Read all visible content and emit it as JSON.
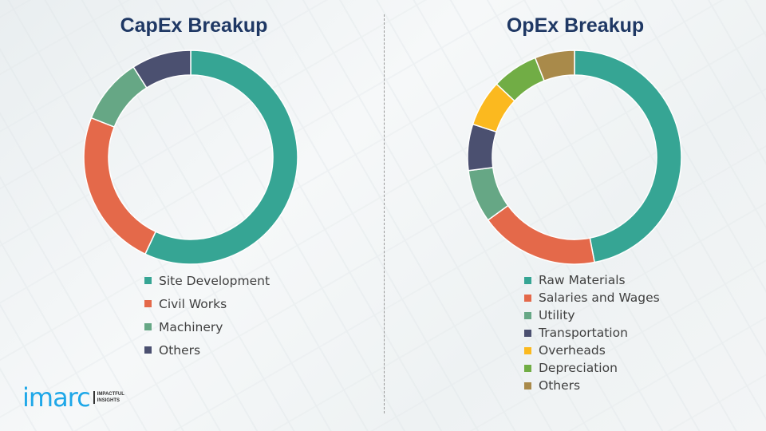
{
  "chart_data": [
    {
      "type": "pie",
      "title": "CapEx Breakup",
      "legend_position": "bottom",
      "categories": [
        "Site Development",
        "Civil Works",
        "Machinery",
        "Others"
      ],
      "values": [
        57,
        24,
        10,
        9
      ],
      "colors": [
        "#36a594",
        "#e4694a",
        "#66a785",
        "#4b5070"
      ]
    },
    {
      "type": "pie",
      "title": "OpEx Breakup",
      "legend_position": "bottom",
      "categories": [
        "Raw Materials",
        "Salaries and Wages",
        "Utility",
        "Transportation",
        "Overheads",
        "Depreciation",
        "Others"
      ],
      "values": [
        47,
        18,
        8,
        7,
        7,
        7,
        6
      ],
      "colors": [
        "#36a594",
        "#e4694a",
        "#66a785",
        "#4b5070",
        "#fbb91f",
        "#71ad45",
        "#a98a4a"
      ]
    }
  ],
  "logo": {
    "word": "imarc",
    "tagline_1": "IMPACTFUL",
    "tagline_2": "INSIGHTS"
  }
}
